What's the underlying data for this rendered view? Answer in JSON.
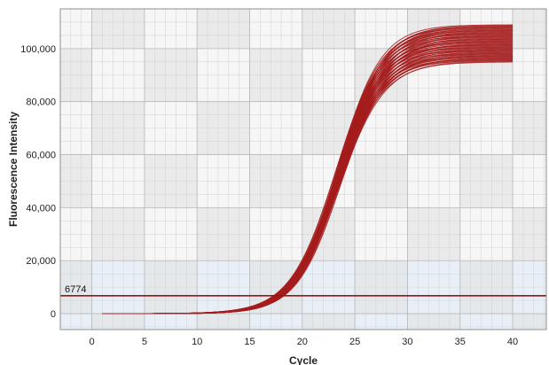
{
  "chart_data": {
    "type": "line",
    "title": "",
    "xlabel": "Cycle",
    "ylabel": "Fluorescence Intensity",
    "xlim": [
      -3,
      43.2
    ],
    "ylim": [
      -6000,
      115000
    ],
    "x_ticks": [
      0,
      5,
      10,
      15,
      20,
      25,
      30,
      35,
      40
    ],
    "x_tick_labels": [
      "0",
      "5",
      "10",
      "15",
      "20",
      "25",
      "30",
      "35",
      "40"
    ],
    "y_ticks": [
      0,
      20000,
      40000,
      60000,
      80000,
      100000
    ],
    "y_tick_labels": [
      "0",
      "20,000",
      "40,000",
      "60,000",
      "80,000",
      "100,000"
    ],
    "grid": true,
    "legend": "none",
    "colors": {
      "curves": "#a51c1c",
      "threshold": "#9b1414",
      "band_light": "#f6f6f6",
      "band_dark": "#e3e3e3",
      "bottom_tint": "#e6eef8"
    },
    "threshold": {
      "value": 6774,
      "label": "6774"
    },
    "curve_model": {
      "description": "sigmoidal amplification curves, cycle 1 to 40",
      "x_start": 1,
      "x_end": 40,
      "baseline": 0,
      "midpoint_cycle": 23.5,
      "plateau_min": 95000,
      "plateau_max": 109000,
      "curve_count": 60
    },
    "series": [
      {
        "x": [
          1,
          17,
          18,
          19,
          20,
          21,
          22,
          23,
          24,
          25,
          26,
          27,
          28,
          29,
          30,
          32,
          34,
          36,
          38,
          40
        ],
        "y": [
          0,
          0,
          1000,
          3000,
          8000,
          17000,
          28000,
          40000,
          52000,
          63000,
          72000,
          80000,
          86000,
          90000,
          93000,
          97000,
          99000,
          100500,
          101500,
          102000
        ]
      }
    ]
  }
}
